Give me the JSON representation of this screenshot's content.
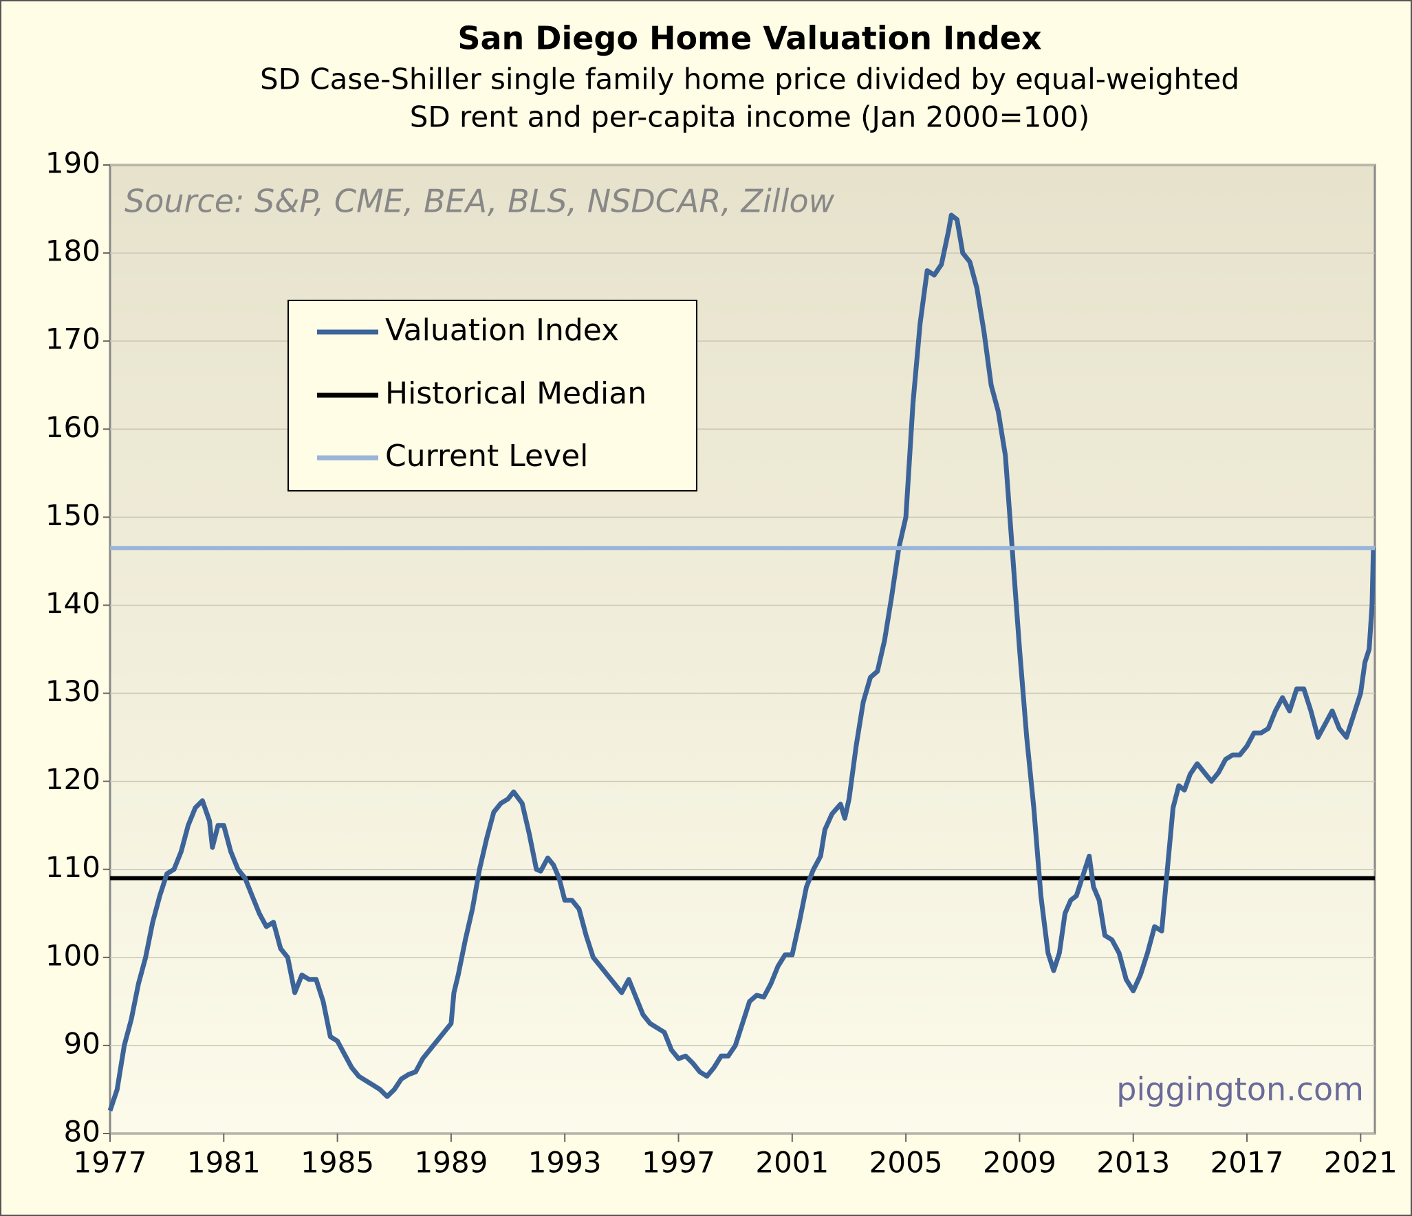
{
  "chart_data": {
    "type": "line",
    "title": "San Diego Home Valuation Index",
    "subtitle": [
      "SD Case-Shiller single family home price divided by equal-weighted",
      "SD rent and per-capita income (Jan 2000=100)"
    ],
    "source": "Source: S&P, CME, BEA, BLS, NSDCAR, Zillow",
    "watermark": "piggington.com",
    "xlim": [
      1977,
      2021.5
    ],
    "xticks": [
      1977,
      1981,
      1985,
      1989,
      1993,
      1997,
      2001,
      2005,
      2009,
      2013,
      2017,
      2021
    ],
    "ylim": [
      80,
      190
    ],
    "yticks": [
      80,
      90,
      100,
      110,
      120,
      130,
      140,
      150,
      160,
      170,
      180,
      190
    ],
    "grid": true,
    "legend": "upper-left",
    "series": [
      {
        "name": "Valuation Index",
        "color": "#3d6499",
        "x": [
          1977.0,
          1977.25,
          1977.5,
          1977.75,
          1978.0,
          1978.25,
          1978.5,
          1978.75,
          1979.0,
          1979.25,
          1979.5,
          1979.75,
          1980.0,
          1980.25,
          1980.5,
          1980.6,
          1980.8,
          1981.0,
          1981.25,
          1981.5,
          1981.75,
          1982.0,
          1982.25,
          1982.5,
          1982.75,
          1983.0,
          1983.25,
          1983.5,
          1983.75,
          1984.0,
          1984.25,
          1984.5,
          1984.75,
          1985.0,
          1985.25,
          1985.5,
          1985.75,
          1986.0,
          1986.25,
          1986.5,
          1986.75,
          1987.0,
          1987.25,
          1987.5,
          1987.75,
          1988.0,
          1988.25,
          1988.5,
          1988.75,
          1989.0,
          1989.1,
          1989.25,
          1989.5,
          1989.75,
          1990.0,
          1990.25,
          1990.5,
          1990.75,
          1991.0,
          1991.2,
          1991.5,
          1991.75,
          1992.0,
          1992.15,
          1992.4,
          1992.6,
          1992.8,
          1993.0,
          1993.25,
          1993.5,
          1993.75,
          1994.0,
          1994.25,
          1994.5,
          1994.75,
          1995.0,
          1995.25,
          1995.5,
          1995.75,
          1996.0,
          1996.25,
          1996.5,
          1996.75,
          1997.0,
          1997.25,
          1997.5,
          1997.75,
          1998.0,
          1998.25,
          1998.5,
          1998.75,
          1999.0,
          1999.25,
          1999.5,
          1999.75,
          2000.0,
          2000.25,
          2000.5,
          2000.75,
          2001.0,
          2001.25,
          2001.5,
          2001.75,
          2002.0,
          2002.15,
          2002.4,
          2002.7,
          2002.85,
          2003.0,
          2003.25,
          2003.5,
          2003.75,
          2004.0,
          2004.25,
          2004.5,
          2004.75,
          2005.0,
          2005.25,
          2005.5,
          2005.75,
          2006.0,
          2006.25,
          2006.5,
          2006.6,
          2006.8,
          2007.0,
          2007.25,
          2007.5,
          2007.75,
          2008.0,
          2008.25,
          2008.5,
          2008.75,
          2009.0,
          2009.25,
          2009.5,
          2009.75,
          2010.0,
          2010.2,
          2010.4,
          2010.6,
          2010.8,
          2011.0,
          2011.25,
          2011.45,
          2011.6,
          2011.8,
          2012.0,
          2012.25,
          2012.5,
          2012.75,
          2013.0,
          2013.25,
          2013.5,
          2013.75,
          2014.0,
          2014.2,
          2014.4,
          2014.6,
          2014.8,
          2015.0,
          2015.25,
          2015.5,
          2015.75,
          2016.0,
          2016.25,
          2016.5,
          2016.75,
          2017.0,
          2017.25,
          2017.5,
          2017.75,
          2018.0,
          2018.25,
          2018.5,
          2018.75,
          2019.0,
          2019.25,
          2019.5,
          2019.75,
          2020.0,
          2020.25,
          2020.5,
          2020.75,
          2021.0,
          2021.15,
          2021.3,
          2021.4,
          2021.45
        ],
        "values": [
          82.6,
          85,
          90,
          93,
          97,
          100,
          104,
          107,
          109.5,
          110,
          112,
          115,
          117,
          117.8,
          115.5,
          112.5,
          115,
          115,
          112,
          110,
          109,
          107,
          105,
          103.5,
          104,
          101,
          100,
          96,
          98,
          97.5,
          97.5,
          95,
          91,
          90.5,
          89,
          87.5,
          86.5,
          86,
          85.5,
          85,
          84.2,
          85,
          86.2,
          86.7,
          87,
          88.5,
          89.5,
          90.5,
          91.5,
          92.5,
          96,
          98,
          102,
          105.5,
          110,
          113.5,
          116.5,
          117.5,
          118,
          118.8,
          117.5,
          114,
          110,
          109.8,
          111.3,
          110.5,
          109,
          106.5,
          106.5,
          105.5,
          102.5,
          100,
          99,
          98,
          97,
          96,
          97.5,
          95.5,
          93.5,
          92.5,
          92,
          91.5,
          89.5,
          88.5,
          88.8,
          88,
          87,
          86.5,
          87.5,
          88.8,
          88.8,
          90,
          92.5,
          95,
          95.7,
          95.5,
          97,
          99,
          100.3,
          100.3,
          104,
          108,
          110,
          111.5,
          114.5,
          116.3,
          117.4,
          115.8,
          118,
          124,
          129,
          131.8,
          132.5,
          136,
          141,
          146.5,
          150,
          163,
          172,
          178,
          177.5,
          178.7,
          182.5,
          184.3,
          183.8,
          180,
          179,
          176,
          171,
          165,
          162,
          157,
          146,
          135,
          125,
          117,
          107,
          100.5,
          98.5,
          100.5,
          105,
          106.5,
          107,
          109.5,
          111.5,
          108,
          106.5,
          102.5,
          102,
          100.5,
          97.5,
          96.2,
          98,
          100.5,
          103.5,
          103,
          110,
          117,
          119.5,
          119,
          120.8,
          122,
          121,
          120,
          121,
          122.5,
          123,
          123,
          124,
          125.5,
          125.5,
          126,
          128,
          129.5,
          128,
          130.5,
          130.5,
          128,
          125,
          126.5,
          128,
          126,
          125,
          127.5,
          130,
          133.5,
          135,
          140,
          146.5
        ]
      },
      {
        "name": "Historical Median",
        "color": "#000000",
        "x": [
          1977,
          2021.5
        ],
        "values": [
          109,
          109
        ]
      },
      {
        "name": "Current Level",
        "color": "#9ab5d9",
        "x": [
          1977,
          2021.5
        ],
        "values": [
          146.5,
          146.5
        ]
      }
    ]
  }
}
